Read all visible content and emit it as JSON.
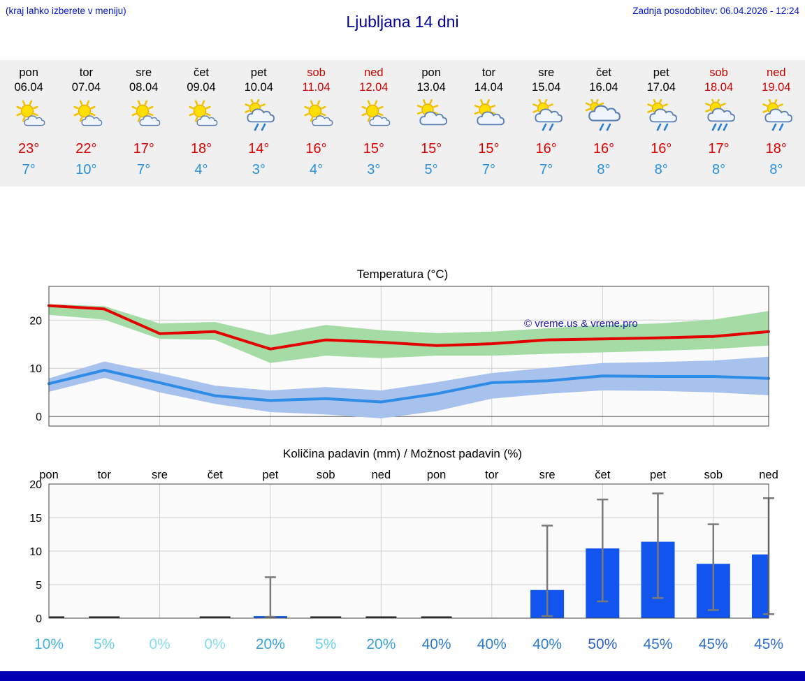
{
  "header": {
    "menu_hint": "(kraj lahko izberete v meniju)",
    "title": "Ljubljana 14 dni",
    "last_update": "Zadnja posodobitev: 06.04.2026 - 12:24"
  },
  "colors": {
    "accent_blue": "#0014cc",
    "title_navy": "#000099",
    "max_red": "#e00000",
    "min_blue": "#2691e0",
    "weekend_red": "#cc0000",
    "strip_bg": "#f0f0f0",
    "bar_blue": "#1155ee",
    "band_green": "#a5dca5",
    "band_blue": "#a8c2ee",
    "footer_bar": "#0000b2"
  },
  "forecast": {
    "days": [
      {
        "day": "pon",
        "date": "06.04",
        "weekend": false,
        "icon": "sun-small-cloud",
        "max": "23°",
        "min": "7°"
      },
      {
        "day": "tor",
        "date": "07.04",
        "weekend": false,
        "icon": "sun-small-cloud",
        "max": "22°",
        "min": "10°"
      },
      {
        "day": "sre",
        "date": "08.04",
        "weekend": false,
        "icon": "sun-small-cloud",
        "max": "17°",
        "min": "7°"
      },
      {
        "day": "čet",
        "date": "09.04",
        "weekend": false,
        "icon": "sun-small-cloud",
        "max": "18°",
        "min": "4°"
      },
      {
        "day": "pet",
        "date": "10.04",
        "weekend": false,
        "icon": "sun-cloud-rain",
        "max": "14°",
        "min": "3°"
      },
      {
        "day": "sob",
        "date": "11.04",
        "weekend": true,
        "icon": "sun-small-cloud",
        "max": "16°",
        "min": "4°"
      },
      {
        "day": "ned",
        "date": "12.04",
        "weekend": true,
        "icon": "sun-small-cloud",
        "max": "15°",
        "min": "3°"
      },
      {
        "day": "pon",
        "date": "13.04",
        "weekend": false,
        "icon": "sun-cloud",
        "max": "15°",
        "min": "5°"
      },
      {
        "day": "tor",
        "date": "14.04",
        "weekend": false,
        "icon": "sun-cloud",
        "max": "15°",
        "min": "7°"
      },
      {
        "day": "sre",
        "date": "15.04",
        "weekend": false,
        "icon": "sun-cloud-rain",
        "max": "16°",
        "min": "7°"
      },
      {
        "day": "čet",
        "date": "16.04",
        "weekend": false,
        "icon": "cloud-rain",
        "max": "16°",
        "min": "8°"
      },
      {
        "day": "pet",
        "date": "17.04",
        "weekend": false,
        "icon": "sun-cloud-rain",
        "max": "16°",
        "min": "8°"
      },
      {
        "day": "sob",
        "date": "18.04",
        "weekend": true,
        "icon": "sun-cloud-heavy-rain",
        "max": "17°",
        "min": "8°"
      },
      {
        "day": "ned",
        "date": "19.04",
        "weekend": true,
        "icon": "sun-cloud-rain",
        "max": "18°",
        "min": "8°"
      }
    ]
  },
  "chart_data": [
    {
      "type": "line",
      "title": "Temperatura (°C)",
      "x_labels": [
        "pon",
        "tor",
        "sre",
        "čet",
        "pet",
        "sob",
        "ned",
        "pon",
        "tor",
        "sre",
        "čet",
        "pet",
        "sob",
        "ned"
      ],
      "ylim": [
        -2,
        27
      ],
      "yticks": [
        0,
        10,
        20
      ],
      "grid": true,
      "watermark": "© vreme.us & vreme.pro",
      "series": [
        {
          "name": "max-temperature",
          "color": "#e30000",
          "band_color": "#a5dca5",
          "values": [
            23,
            22.3,
            17.2,
            17.6,
            14,
            15.9,
            15.4,
            14.7,
            15.1,
            15.9,
            16.1,
            16.3,
            16.6,
            17.6
          ],
          "band_upper": [
            23.3,
            22.9,
            19.3,
            19.6,
            16.9,
            19,
            17.9,
            17.3,
            17.6,
            18.3,
            19,
            19.3,
            20.1,
            21.9
          ],
          "band_lower": [
            21.1,
            20.1,
            16.1,
            15.9,
            11.1,
            12.6,
            12.1,
            12.6,
            12.6,
            13,
            13.3,
            13.6,
            14,
            14.7
          ]
        },
        {
          "name": "min-temperature",
          "color": "#2e8be6",
          "band_color": "#a8c2ee",
          "values": [
            6.8,
            9.6,
            7,
            4.3,
            3.3,
            3.7,
            3,
            4.7,
            7,
            7.4,
            8.4,
            8.3,
            8.3,
            7.9
          ],
          "band_upper": [
            7.9,
            11.4,
            9,
            6.4,
            5.4,
            6.1,
            5.4,
            7.1,
            9,
            10.1,
            11.1,
            11.3,
            11.6,
            12.4
          ],
          "band_lower": [
            5.1,
            8,
            5,
            2.6,
            0.9,
            0.4,
            -0.4,
            1.1,
            3.7,
            4.7,
            5.4,
            5.3,
            5,
            4.4
          ]
        }
      ]
    },
    {
      "type": "bar",
      "title": "Količina padavin (mm) / Možnost padavin (%)",
      "categories": [
        "pon",
        "tor",
        "sre",
        "čet",
        "pet",
        "sob",
        "ned",
        "pon",
        "tor",
        "sre",
        "čet",
        "pet",
        "sob",
        "ned"
      ],
      "ylim": [
        0,
        20
      ],
      "yticks": [
        0,
        5,
        10,
        15,
        20
      ],
      "grid": true,
      "bar_color": "#1155ee",
      "whisker_color": "#7a7a7a",
      "values": [
        0.1,
        0.15,
        0,
        0.1,
        0.3,
        0.15,
        0.1,
        0.15,
        0,
        4.2,
        10.4,
        11.4,
        8.1,
        9.5
      ],
      "whisker_low": [
        null,
        null,
        null,
        null,
        0.2,
        null,
        null,
        null,
        null,
        0.3,
        2.5,
        3,
        1.2,
        0.6
      ],
      "whisker_high": [
        null,
        null,
        null,
        null,
        6.1,
        null,
        null,
        null,
        null,
        13.8,
        17.7,
        18.6,
        14,
        17.9
      ],
      "probability_percent": [
        10,
        5,
        0,
        0,
        20,
        5,
        20,
        40,
        40,
        40,
        50,
        45,
        45,
        45
      ],
      "probability_labels": [
        {
          "label": "10%",
          "color": "#41b4da"
        },
        {
          "label": "5%",
          "color": "#68d0e8"
        },
        {
          "label": "0%",
          "color": "#85dcec"
        },
        {
          "label": "0%",
          "color": "#85dcec"
        },
        {
          "label": "20%",
          "color": "#3aa2de"
        },
        {
          "label": "5%",
          "color": "#68d0e8"
        },
        {
          "label": "20%",
          "color": "#3aa2de"
        },
        {
          "label": "40%",
          "color": "#2f7ed4"
        },
        {
          "label": "40%",
          "color": "#2f7ed4"
        },
        {
          "label": "40%",
          "color": "#2f7ed4"
        },
        {
          "label": "50%",
          "color": "#2c60cc"
        },
        {
          "label": "45%",
          "color": "#2e6ed0"
        },
        {
          "label": "45%",
          "color": "#2e6ed0"
        },
        {
          "label": "45%",
          "color": "#2e6ed0"
        }
      ]
    }
  ]
}
